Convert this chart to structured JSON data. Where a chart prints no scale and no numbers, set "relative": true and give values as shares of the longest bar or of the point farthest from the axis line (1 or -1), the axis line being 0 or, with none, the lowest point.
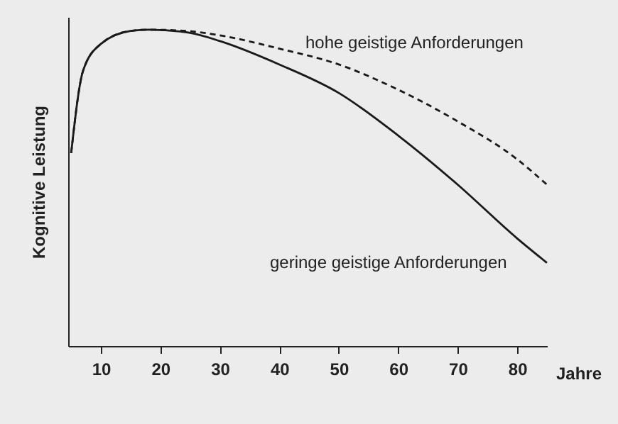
{
  "chart_data": {
    "type": "line",
    "xlabel": "Jahre",
    "ylabel": "Kognitive Leistung",
    "relative": true,
    "x": [
      5,
      7,
      10,
      15,
      18,
      25,
      30,
      40,
      50,
      60,
      70,
      80,
      85
    ],
    "xlim": [
      4.5,
      85
    ],
    "xticks": [
      10,
      20,
      30,
      40,
      50,
      60,
      70,
      80
    ],
    "series": [
      {
        "name": "hohe geistige Anforderungen",
        "color": "#1a1a1a",
        "line_style": "dashed",
        "values": [
          0.61,
          0.87,
          0.955,
          0.996,
          1.0,
          0.995,
          0.982,
          0.94,
          0.89,
          0.81,
          0.71,
          0.59,
          0.51
        ]
      },
      {
        "name": "geringe geistige Anforderungen",
        "color": "#1a1a1a",
        "line_style": "solid",
        "values": [
          0.61,
          0.87,
          0.955,
          0.996,
          1.0,
          0.99,
          0.964,
          0.89,
          0.8,
          0.665,
          0.51,
          0.34,
          0.263
        ]
      }
    ]
  }
}
